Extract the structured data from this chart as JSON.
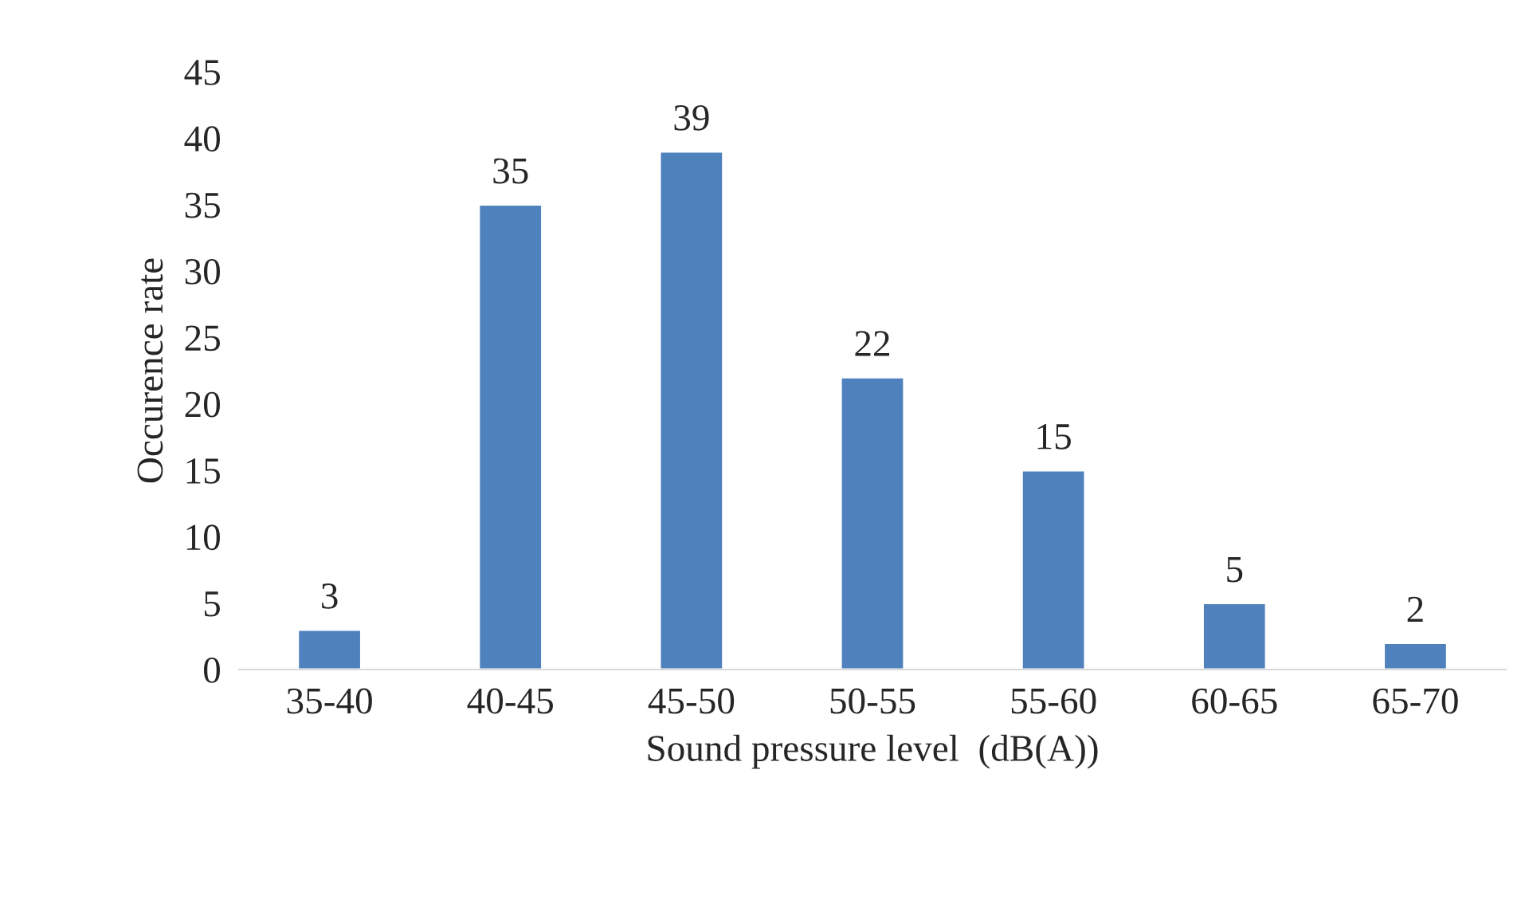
{
  "chart_data": {
    "type": "bar",
    "xlabel": "Sound pressure level  (dB(A))",
    "ylabel": "Occurence rate",
    "categories": [
      "35-40",
      "40-45",
      "45-50",
      "50-55",
      "55-60",
      "60-65",
      "65-70"
    ],
    "values": [
      3,
      35,
      39,
      22,
      15,
      5,
      2
    ],
    "color": "#4f81bd",
    "ylim": [
      0,
      45
    ],
    "yticks": [
      0,
      5,
      10,
      15,
      20,
      25,
      30,
      35,
      40,
      45
    ],
    "grid": false,
    "data_labels": true
  }
}
